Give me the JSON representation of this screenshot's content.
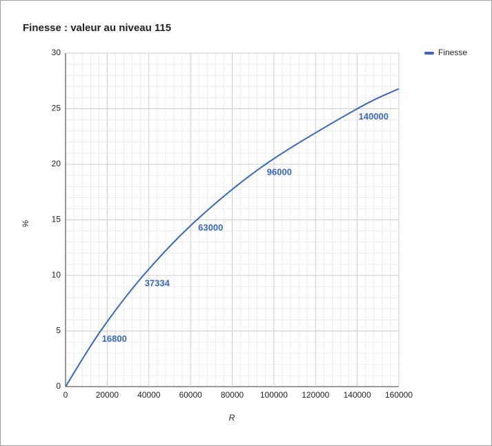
{
  "chart_data": {
    "type": "line",
    "title": "Finesse : valeur au niveau 115",
    "x_label": "R",
    "y_label": "%",
    "x": [
      0,
      16800,
      37334,
      63000,
      96000,
      140000,
      160000
    ],
    "series": [
      {
        "name": "Finesse",
        "color": "#3366cc",
        "values": [
          0,
          5,
          10,
          15,
          20,
          25,
          26.8
        ],
        "annotations": [
          null,
          16800,
          37334,
          63000,
          96000,
          140000,
          null
        ]
      }
    ],
    "xlim": [
      0,
      160000
    ],
    "xticks": [
      0,
      20000,
      40000,
      60000,
      80000,
      100000,
      120000,
      140000,
      160000
    ],
    "ylim": [
      0,
      30
    ],
    "yticks": [
      0,
      5,
      10,
      15,
      20,
      25,
      30
    ],
    "grid": true,
    "minor_gridlines": 4,
    "smooth": true,
    "legend": "right"
  }
}
